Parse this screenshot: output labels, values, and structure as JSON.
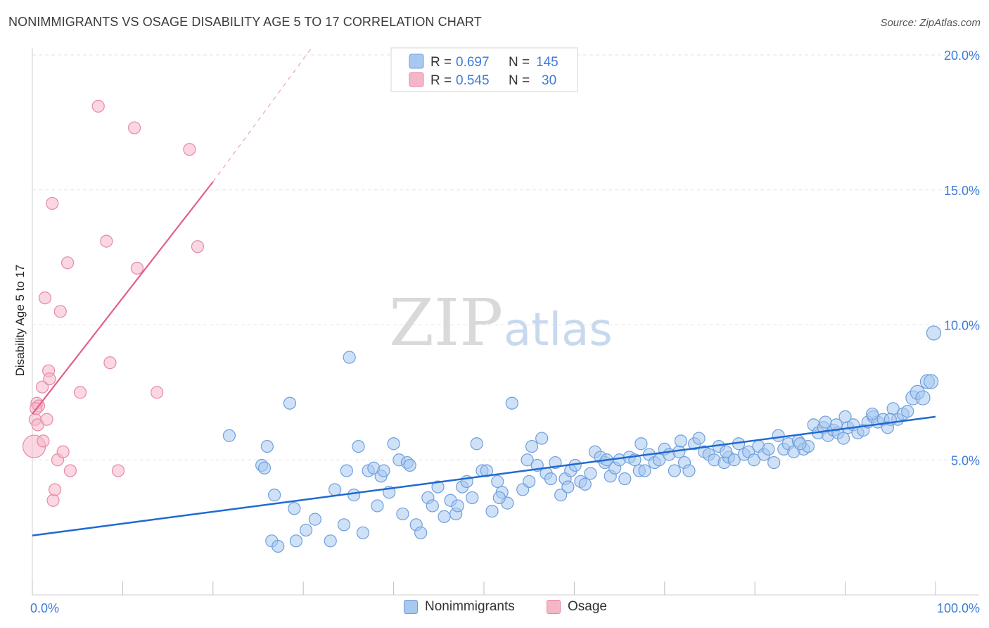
{
  "header": {
    "title": "NONIMMIGRANTS VS OSAGE DISABILITY AGE 5 TO 17 CORRELATION CHART",
    "source": "Source: ZipAtlas.com"
  },
  "watermark": {
    "zip": "ZIP",
    "atlas": "atlas"
  },
  "legend": {
    "rows": [
      {
        "r_label": "R =",
        "r_value": "0.697",
        "n_label": "N =",
        "n_value": "145",
        "color": "#a8c8f0"
      },
      {
        "r_label": "R =",
        "r_value": "0.545",
        "n_label": "N =",
        "n_value": "30",
        "color": "#f5b6c8"
      }
    ]
  },
  "bottom_legend": {
    "items": [
      {
        "label": "Nonimmigrants",
        "color": "#a8c8f0"
      },
      {
        "label": "Osage",
        "color": "#f5b6c8"
      }
    ]
  },
  "chart_data": {
    "type": "scatter",
    "title": "NONIMMIGRANTS VS OSAGE DISABILITY AGE 5 TO 17 CORRELATION CHART",
    "ylabel": "Disability Age 5 to 17",
    "xlabel": "",
    "xlim": [
      0,
      100
    ],
    "ylim": [
      0,
      20.5
    ],
    "x_tick_labels": [
      "0.0%",
      "100.0%"
    ],
    "y_tick_labels": [
      "5.0%",
      "10.0%",
      "15.0%",
      "20.0%"
    ],
    "y_ticks": [
      5,
      10,
      15,
      20
    ],
    "grid": true,
    "legend_position": "top-center",
    "colors": {
      "blue_fill": "#a8c8f0",
      "blue_stroke": "#6f9fdc",
      "blue_line": "#1f6ad1",
      "pink_fill": "#f5b6c8",
      "pink_stroke": "#e58aa6",
      "pink_line": "#e0608a",
      "tick_text": "#3d7bd9",
      "grid": "#e3e3e3"
    },
    "series": [
      {
        "name": "Nonimmigrants",
        "color": "#a8c8f0",
        "trend": {
          "x0": 0,
          "y0": 2.2,
          "x1": 100,
          "y1": 6.6
        },
        "points": [
          [
            21.8,
            5.9
          ],
          [
            25.4,
            4.8
          ],
          [
            25.7,
            4.7
          ],
          [
            26.0,
            5.5
          ],
          [
            26.5,
            2.0
          ],
          [
            26.8,
            3.7
          ],
          [
            27.2,
            1.8
          ],
          [
            28.5,
            7.1
          ],
          [
            29.0,
            3.2
          ],
          [
            29.2,
            2.0
          ],
          [
            30.3,
            2.4
          ],
          [
            31.3,
            2.8
          ],
          [
            33.0,
            2.0
          ],
          [
            33.5,
            3.9
          ],
          [
            34.5,
            2.6
          ],
          [
            34.8,
            4.6
          ],
          [
            35.1,
            8.8
          ],
          [
            35.6,
            3.7
          ],
          [
            36.1,
            5.5
          ],
          [
            36.6,
            2.3
          ],
          [
            37.2,
            4.6
          ],
          [
            37.8,
            4.7
          ],
          [
            38.2,
            3.3
          ],
          [
            38.6,
            4.4
          ],
          [
            38.9,
            4.6
          ],
          [
            40.0,
            5.6
          ],
          [
            40.6,
            5.0
          ],
          [
            41.0,
            3.0
          ],
          [
            41.5,
            4.9
          ],
          [
            41.8,
            4.8
          ],
          [
            42.5,
            2.6
          ],
          [
            43.0,
            2.3
          ],
          [
            43.8,
            3.6
          ],
          [
            44.3,
            3.3
          ],
          [
            44.9,
            4.0
          ],
          [
            45.6,
            2.9
          ],
          [
            46.3,
            3.5
          ],
          [
            46.9,
            3.0
          ],
          [
            47.6,
            4.0
          ],
          [
            48.1,
            4.2
          ],
          [
            48.7,
            3.6
          ],
          [
            49.2,
            5.6
          ],
          [
            49.8,
            4.6
          ],
          [
            50.3,
            4.6
          ],
          [
            50.9,
            3.1
          ],
          [
            51.5,
            4.2
          ],
          [
            52.0,
            3.8
          ],
          [
            52.6,
            3.4
          ],
          [
            53.1,
            7.1
          ],
          [
            54.3,
            3.9
          ],
          [
            54.8,
            5.0
          ],
          [
            55.3,
            5.5
          ],
          [
            55.9,
            4.8
          ],
          [
            56.4,
            5.8
          ],
          [
            56.9,
            4.5
          ],
          [
            57.4,
            4.3
          ],
          [
            57.9,
            4.9
          ],
          [
            58.5,
            3.7
          ],
          [
            59.0,
            4.3
          ],
          [
            59.6,
            4.6
          ],
          [
            60.1,
            4.8
          ],
          [
            60.7,
            4.2
          ],
          [
            61.2,
            4.1
          ],
          [
            61.8,
            4.5
          ],
          [
            62.3,
            5.3
          ],
          [
            62.9,
            5.1
          ],
          [
            63.4,
            4.9
          ],
          [
            64.0,
            4.4
          ],
          [
            64.5,
            4.7
          ],
          [
            65.0,
            5.0
          ],
          [
            65.6,
            4.3
          ],
          [
            66.1,
            5.1
          ],
          [
            66.7,
            5.0
          ],
          [
            67.2,
            4.6
          ],
          [
            67.8,
            4.6
          ],
          [
            68.3,
            5.2
          ],
          [
            68.9,
            4.9
          ],
          [
            69.4,
            5.0
          ],
          [
            70.0,
            5.4
          ],
          [
            70.5,
            5.2
          ],
          [
            71.1,
            4.6
          ],
          [
            71.6,
            5.3
          ],
          [
            72.2,
            4.9
          ],
          [
            72.7,
            4.6
          ],
          [
            73.3,
            5.6
          ],
          [
            73.8,
            5.8
          ],
          [
            74.4,
            5.3
          ],
          [
            74.9,
            5.2
          ],
          [
            75.5,
            5.0
          ],
          [
            76.0,
            5.5
          ],
          [
            76.6,
            4.9
          ],
          [
            77.1,
            5.1
          ],
          [
            77.7,
            5.0
          ],
          [
            78.2,
            5.6
          ],
          [
            78.8,
            5.2
          ],
          [
            79.3,
            5.3
          ],
          [
            79.9,
            5.0
          ],
          [
            80.4,
            5.5
          ],
          [
            81.0,
            5.2
          ],
          [
            81.5,
            5.4
          ],
          [
            82.1,
            4.9
          ],
          [
            82.6,
            5.9
          ],
          [
            83.2,
            5.4
          ],
          [
            83.7,
            5.6
          ],
          [
            84.3,
            5.3
          ],
          [
            84.8,
            5.7
          ],
          [
            85.4,
            5.4
          ],
          [
            85.9,
            5.5
          ],
          [
            86.5,
            6.3
          ],
          [
            87.0,
            6.0
          ],
          [
            87.6,
            6.2
          ],
          [
            88.1,
            5.9
          ],
          [
            88.7,
            6.1
          ],
          [
            89.2,
            6.0
          ],
          [
            89.8,
            5.8
          ],
          [
            90.3,
            6.2
          ],
          [
            90.9,
            6.3
          ],
          [
            91.4,
            6.0
          ],
          [
            92.0,
            6.1
          ],
          [
            92.5,
            6.4
          ],
          [
            93.1,
            6.6
          ],
          [
            93.6,
            6.4
          ],
          [
            94.2,
            6.5
          ],
          [
            94.7,
            6.2
          ],
          [
            95.3,
            6.9
          ],
          [
            95.8,
            6.5
          ],
          [
            96.4,
            6.7
          ],
          [
            96.9,
            6.8
          ],
          [
            97.5,
            7.3
          ],
          [
            98.0,
            7.5
          ],
          [
            98.6,
            7.3
          ],
          [
            99.1,
            7.9
          ],
          [
            99.5,
            7.9
          ],
          [
            99.8,
            9.7
          ],
          [
            90.0,
            6.6
          ],
          [
            93.0,
            6.7
          ],
          [
            95.0,
            6.5
          ],
          [
            89.0,
            6.3
          ],
          [
            87.8,
            6.4
          ],
          [
            85.0,
            5.6
          ],
          [
            76.8,
            5.3
          ],
          [
            71.8,
            5.7
          ],
          [
            67.4,
            5.6
          ],
          [
            63.6,
            5.0
          ],
          [
            59.3,
            4.0
          ],
          [
            55.0,
            4.2
          ],
          [
            51.7,
            3.6
          ],
          [
            47.1,
            3.3
          ],
          [
            39.5,
            3.8
          ]
        ]
      },
      {
        "name": "Osage",
        "color": "#f5b6c8",
        "trend": {
          "x0": 0,
          "y0": 6.7,
          "x1": 20,
          "y1": 15.3,
          "dash_to": {
            "x": 31,
            "y": 20.3
          }
        },
        "points": [
          [
            0.2,
            5.5
          ],
          [
            0.3,
            6.5
          ],
          [
            0.5,
            7.1
          ],
          [
            0.6,
            6.3
          ],
          [
            0.7,
            7.0
          ],
          [
            1.1,
            7.7
          ],
          [
            1.2,
            5.7
          ],
          [
            1.4,
            11.0
          ],
          [
            1.6,
            6.5
          ],
          [
            1.8,
            8.3
          ],
          [
            1.9,
            8.0
          ],
          [
            2.2,
            14.5
          ],
          [
            2.3,
            3.5
          ],
          [
            2.5,
            3.9
          ],
          [
            2.8,
            5.0
          ],
          [
            3.1,
            10.5
          ],
          [
            3.4,
            5.3
          ],
          [
            3.9,
            12.3
          ],
          [
            4.2,
            4.6
          ],
          [
            5.3,
            7.5
          ],
          [
            7.3,
            18.1
          ],
          [
            8.2,
            13.1
          ],
          [
            8.6,
            8.6
          ],
          [
            9.5,
            4.6
          ],
          [
            11.3,
            17.3
          ],
          [
            11.6,
            12.1
          ],
          [
            13.8,
            7.5
          ],
          [
            17.4,
            16.5
          ],
          [
            18.3,
            12.9
          ],
          [
            0.4,
            6.9
          ]
        ]
      }
    ]
  }
}
